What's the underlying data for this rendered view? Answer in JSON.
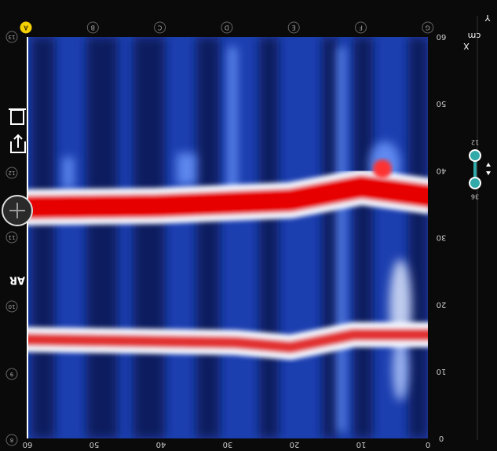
{
  "top_markers": [
    "A",
    "B",
    "C",
    "D",
    "E",
    "F",
    "G"
  ],
  "left_markers": [
    "13",
    "12",
    "11",
    "10",
    "9",
    "8"
  ],
  "x_axis": {
    "ticks": [
      "60",
      "50",
      "40",
      "30",
      "20",
      "10",
      "0"
    ]
  },
  "y_axis": {
    "ticks": [
      "60",
      "50",
      "40",
      "30",
      "20",
      "10",
      "0"
    ]
  },
  "tools": {
    "ar": "AR"
  },
  "units": {
    "label": "cm",
    "x": "X",
    "y": "Y"
  },
  "slider": {
    "top": "12",
    "bottom": "36"
  }
}
